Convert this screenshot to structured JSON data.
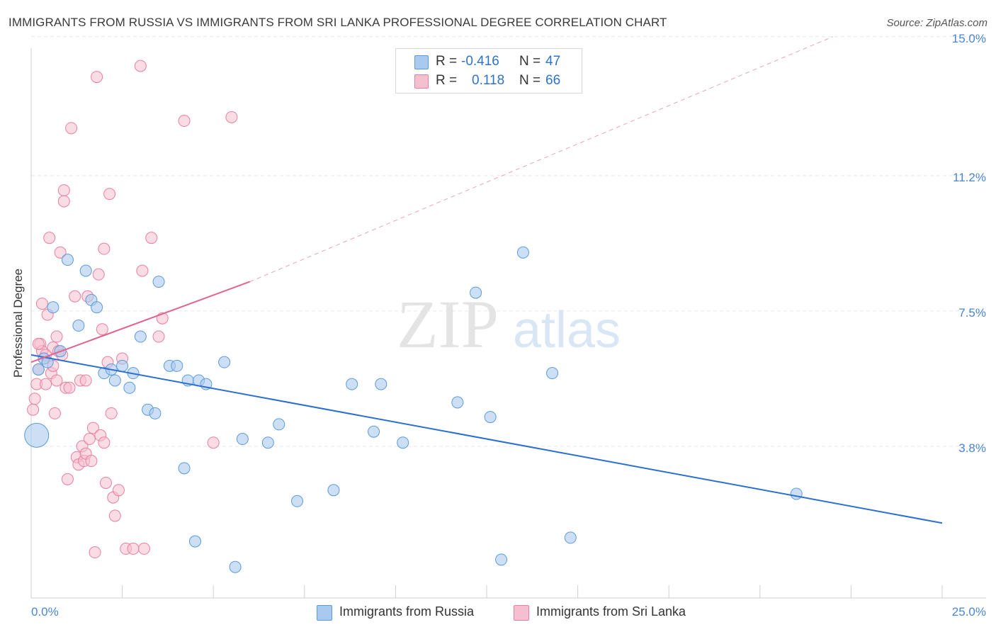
{
  "title": "IMMIGRANTS FROM RUSSIA VS IMMIGRANTS FROM SRI LANKA PROFESSIONAL DEGREE CORRELATION CHART",
  "source": "Source: ZipAtlas.com",
  "watermark": {
    "zip": "ZIP",
    "atlas": "atlas"
  },
  "legend": {
    "russia": {
      "r_label": "R =",
      "r_value": "-0.416",
      "n_label": "N =",
      "n_value": "47"
    },
    "srilanka": {
      "r_label": "R =",
      "r_value": "0.118",
      "n_label": "N =",
      "n_value": "66"
    }
  },
  "bottom_legend": {
    "russia": "Immigrants from Russia",
    "srilanka": "Immigrants from Sri Lanka"
  },
  "colors": {
    "russia": "#5b9bdc",
    "russia_fill": "#aac9ee",
    "russia_line": "#2b6fd0",
    "srilanka": "#e87fa1",
    "srilanka_fill": "#f6bfd0",
    "srilanka_line": "#e0648e",
    "tick_label": "#4a86d0"
  },
  "chart_data": {
    "type": "scatter",
    "title": "IMMIGRANTS FROM RUSSIA VS IMMIGRANTS FROM SRI LANKA PROFESSIONAL DEGREE CORRELATION CHART",
    "xlabel": "",
    "ylabel": "Professional Degree",
    "xlim": [
      0,
      25
    ],
    "ylim": [
      0,
      15.5
    ],
    "x_tick_labels": [
      "0.0%",
      "25.0%"
    ],
    "y_ticks": [
      3.8,
      7.5,
      11.2,
      15.0
    ],
    "y_tick_labels": [
      "3.8%",
      "7.5%",
      "11.2%",
      "15.0%"
    ],
    "series": [
      {
        "name": "Immigrants from Russia",
        "r": -0.416,
        "n": 47,
        "trend": {
          "x": [
            0,
            25
          ],
          "y": [
            6.3,
            1.7
          ],
          "style": "solid"
        },
        "points": [
          {
            "x": 0.15,
            "y": 4.1,
            "size": "large"
          },
          {
            "x": 0.2,
            "y": 5.9
          },
          {
            "x": 0.35,
            "y": 6.2
          },
          {
            "x": 0.45,
            "y": 6.1
          },
          {
            "x": 0.6,
            "y": 7.6
          },
          {
            "x": 0.8,
            "y": 6.4
          },
          {
            "x": 1.0,
            "y": 8.9
          },
          {
            "x": 1.3,
            "y": 7.1
          },
          {
            "x": 1.5,
            "y": 8.6
          },
          {
            "x": 1.65,
            "y": 7.8
          },
          {
            "x": 1.8,
            "y": 7.6
          },
          {
            "x": 2.0,
            "y": 5.8
          },
          {
            "x": 2.2,
            "y": 5.9
          },
          {
            "x": 2.3,
            "y": 5.6
          },
          {
            "x": 2.5,
            "y": 6.0
          },
          {
            "x": 2.7,
            "y": 5.4
          },
          {
            "x": 2.8,
            "y": 5.8
          },
          {
            "x": 3.0,
            "y": 6.8
          },
          {
            "x": 3.2,
            "y": 4.8
          },
          {
            "x": 3.4,
            "y": 4.7
          },
          {
            "x": 3.5,
            "y": 8.3
          },
          {
            "x": 3.8,
            "y": 6.0
          },
          {
            "x": 4.0,
            "y": 6.0
          },
          {
            "x": 4.2,
            "y": 3.2
          },
          {
            "x": 4.3,
            "y": 5.6
          },
          {
            "x": 4.5,
            "y": 1.2
          },
          {
            "x": 4.6,
            "y": 5.6
          },
          {
            "x": 4.8,
            "y": 5.5
          },
          {
            "x": 5.3,
            "y": 6.1
          },
          {
            "x": 5.6,
            "y": 0.5
          },
          {
            "x": 5.8,
            "y": 4.0
          },
          {
            "x": 6.5,
            "y": 3.9
          },
          {
            "x": 6.8,
            "y": 4.4
          },
          {
            "x": 7.3,
            "y": 2.3
          },
          {
            "x": 8.3,
            "y": 2.6
          },
          {
            "x": 8.8,
            "y": 5.5
          },
          {
            "x": 9.4,
            "y": 4.2
          },
          {
            "x": 9.6,
            "y": 5.5
          },
          {
            "x": 10.2,
            "y": 3.9
          },
          {
            "x": 11.7,
            "y": 5.0
          },
          {
            "x": 12.2,
            "y": 8.0
          },
          {
            "x": 12.6,
            "y": 4.6
          },
          {
            "x": 12.9,
            "y": 0.7
          },
          {
            "x": 13.5,
            "y": 9.1
          },
          {
            "x": 14.3,
            "y": 5.8
          },
          {
            "x": 14.8,
            "y": 1.3
          },
          {
            "x": 21.0,
            "y": 2.5
          }
        ]
      },
      {
        "name": "Immigrants from Sri Lanka",
        "r": 0.118,
        "n": 66,
        "trend": {
          "x": [
            0,
            6
          ],
          "y": [
            6.1,
            8.3
          ],
          "style": "solid",
          "extension": {
            "x": [
              6,
              22
            ],
            "y": [
              8.3,
              15.0
            ],
            "style": "dashed"
          }
        },
        "points": [
          {
            "x": 0.05,
            "y": 4.8
          },
          {
            "x": 0.1,
            "y": 5.1
          },
          {
            "x": 0.15,
            "y": 5.5
          },
          {
            "x": 0.2,
            "y": 5.9
          },
          {
            "x": 0.25,
            "y": 6.6
          },
          {
            "x": 0.3,
            "y": 7.7
          },
          {
            "x": 0.3,
            "y": 6.4
          },
          {
            "x": 0.35,
            "y": 6.2
          },
          {
            "x": 0.4,
            "y": 5.5
          },
          {
            "x": 0.45,
            "y": 7.4
          },
          {
            "x": 0.5,
            "y": 9.5
          },
          {
            "x": 0.55,
            "y": 5.8
          },
          {
            "x": 0.6,
            "y": 6.5
          },
          {
            "x": 0.65,
            "y": 4.7
          },
          {
            "x": 0.7,
            "y": 6.8
          },
          {
            "x": 0.75,
            "y": 6.4
          },
          {
            "x": 0.8,
            "y": 9.1
          },
          {
            "x": 0.85,
            "y": 6.3
          },
          {
            "x": 0.9,
            "y": 10.8
          },
          {
            "x": 0.9,
            "y": 10.5
          },
          {
            "x": 0.95,
            "y": 5.4
          },
          {
            "x": 1.0,
            "y": 2.9
          },
          {
            "x": 1.05,
            "y": 5.4
          },
          {
            "x": 1.1,
            "y": 12.5
          },
          {
            "x": 1.2,
            "y": 7.9
          },
          {
            "x": 1.25,
            "y": 3.5
          },
          {
            "x": 1.3,
            "y": 3.3
          },
          {
            "x": 1.35,
            "y": 5.6
          },
          {
            "x": 1.4,
            "y": 3.8
          },
          {
            "x": 1.45,
            "y": 3.4
          },
          {
            "x": 1.5,
            "y": 5.6
          },
          {
            "x": 1.5,
            "y": 3.6
          },
          {
            "x": 1.55,
            "y": 7.9
          },
          {
            "x": 1.6,
            "y": 4.0
          },
          {
            "x": 1.65,
            "y": 3.4
          },
          {
            "x": 1.7,
            "y": 4.3
          },
          {
            "x": 1.75,
            "y": 0.9
          },
          {
            "x": 1.8,
            "y": 13.9
          },
          {
            "x": 1.85,
            "y": 8.5
          },
          {
            "x": 1.9,
            "y": 4.1
          },
          {
            "x": 1.95,
            "y": 7.0
          },
          {
            "x": 2.0,
            "y": 3.9
          },
          {
            "x": 2.0,
            "y": 9.2
          },
          {
            "x": 2.05,
            "y": 2.8
          },
          {
            "x": 2.1,
            "y": 6.1
          },
          {
            "x": 2.15,
            "y": 10.7
          },
          {
            "x": 2.2,
            "y": 4.7
          },
          {
            "x": 2.25,
            "y": 2.4
          },
          {
            "x": 2.3,
            "y": 1.9
          },
          {
            "x": 2.4,
            "y": 2.6
          },
          {
            "x": 2.5,
            "y": 6.2
          },
          {
            "x": 2.6,
            "y": 1.0
          },
          {
            "x": 2.8,
            "y": 1.0
          },
          {
            "x": 3.0,
            "y": 14.2
          },
          {
            "x": 3.05,
            "y": 8.6
          },
          {
            "x": 3.1,
            "y": 1.0
          },
          {
            "x": 3.3,
            "y": 9.5
          },
          {
            "x": 3.5,
            "y": 6.8
          },
          {
            "x": 3.6,
            "y": 7.3
          },
          {
            "x": 4.2,
            "y": 12.7
          },
          {
            "x": 5.0,
            "y": 3.9
          },
          {
            "x": 5.5,
            "y": 12.8
          },
          {
            "x": 0.6,
            "y": 6.0
          },
          {
            "x": 0.7,
            "y": 5.6
          },
          {
            "x": 0.2,
            "y": 6.6
          },
          {
            "x": 0.4,
            "y": 6.3
          }
        ]
      }
    ]
  }
}
